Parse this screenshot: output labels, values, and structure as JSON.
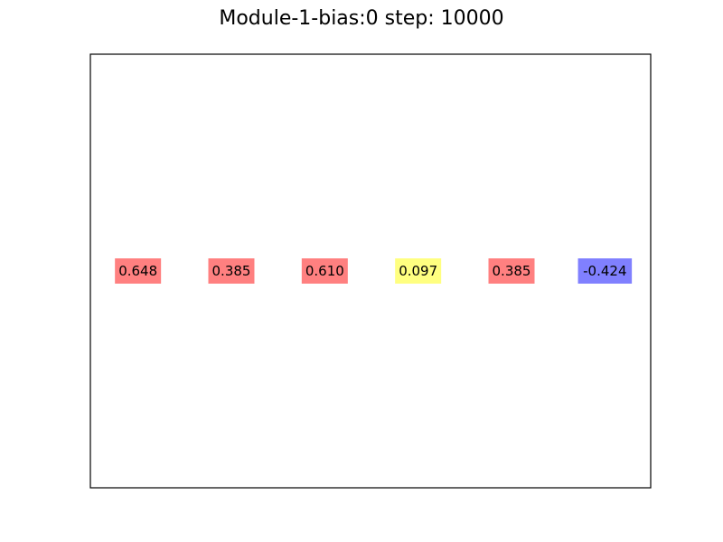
{
  "chart_data": {
    "type": "table",
    "title": "Module-1-bias:0 step: 10000",
    "xlabel": "",
    "ylabel": "",
    "axes_ticks": false,
    "grid": false,
    "cells": [
      {
        "label": "0.648",
        "value": 0.648,
        "color": "#ff8080"
      },
      {
        "label": "0.385",
        "value": 0.385,
        "color": "#ff8080"
      },
      {
        "label": "0.610",
        "value": 0.61,
        "color": "#ff8080"
      },
      {
        "label": "0.097",
        "value": 0.097,
        "color": "#ffff80"
      },
      {
        "label": "0.385",
        "value": 0.385,
        "color": "#ff8080"
      },
      {
        "label": "-0.424",
        "value": -0.424,
        "color": "#8080ff"
      }
    ]
  },
  "colors": {
    "positive": "#ff8080",
    "near_zero": "#ffff80",
    "negative": "#8080ff",
    "frame": "#000000"
  }
}
